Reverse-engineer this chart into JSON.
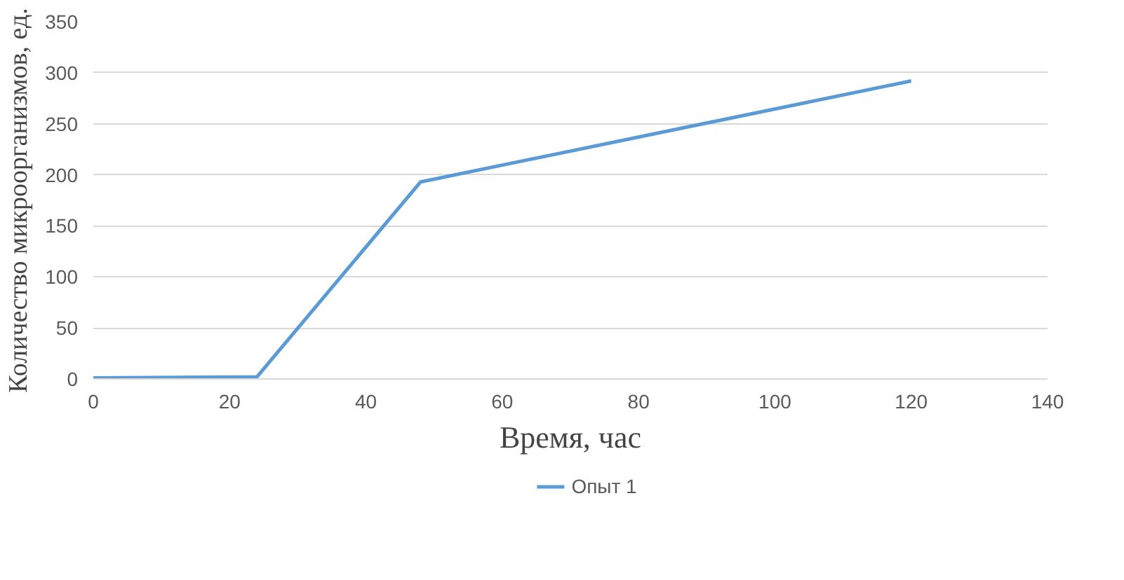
{
  "chart_data": {
    "type": "line",
    "xlabel": "Время, час",
    "ylabel": "Количество микроорганизмов, ед.",
    "x": [
      0,
      24,
      48,
      120
    ],
    "series": [
      {
        "name": "Опыт 1",
        "color": "#5b9bd5",
        "values": [
          1,
          2,
          193,
          292
        ]
      }
    ],
    "xlim": [
      0,
      140
    ],
    "xticks": [
      0,
      20,
      40,
      60,
      80,
      100,
      120,
      140
    ],
    "ylim": [
      0,
      350
    ],
    "yticks": [
      0,
      50,
      100,
      150,
      200,
      250,
      300,
      350
    ],
    "grid": "y",
    "legend": "bottom",
    "marker": "none",
    "line_style": "solid"
  }
}
